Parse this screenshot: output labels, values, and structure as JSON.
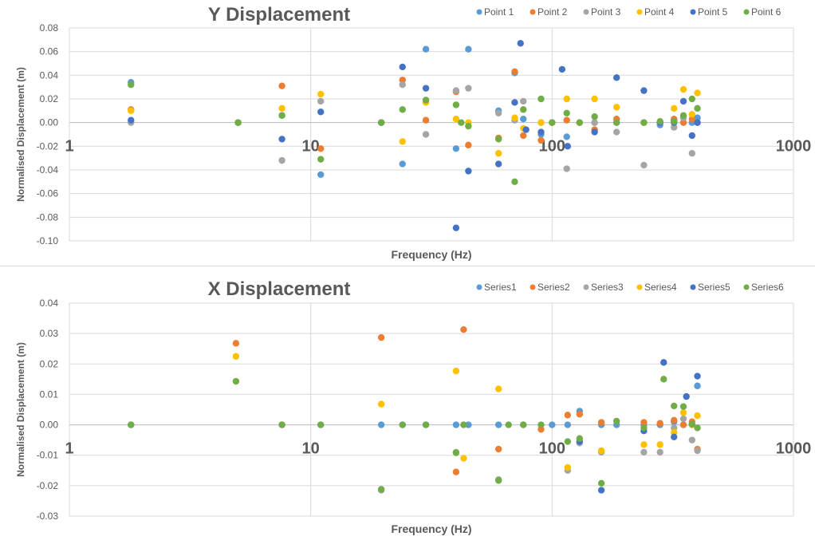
{
  "chart_data": [
    {
      "type": "scatter",
      "title": "Y Displacement",
      "xlabel": "Frequency (Hz)",
      "ylabel": "Normalised Displacement (m)",
      "x_scale": "log",
      "xlim": [
        1,
        1000
      ],
      "ylim": [
        -0.1,
        0.08
      ],
      "x_ticks": [
        1,
        10,
        100,
        1000
      ],
      "x_tick_labels": [
        "1",
        "10",
        "100",
        "1000"
      ],
      "y_ticks": [
        -0.1,
        -0.08,
        -0.06,
        -0.04,
        -0.02,
        0.0,
        0.02,
        0.04,
        0.06,
        0.08
      ],
      "y_tick_labels": [
        "-0.10",
        "-0.08",
        "-0.06",
        "-0.04",
        "-0.02",
        "0.00",
        "0.02",
        "0.04",
        "0.06",
        "0.08"
      ],
      "grid": true,
      "legend_position": "top-right",
      "series": [
        {
          "name": "Point 1",
          "color": "#5b9bd5",
          "points": [
            [
              1.8,
              0.034
            ],
            [
              5,
              0.0
            ],
            [
              7.6,
              0.006
            ],
            [
              11,
              -0.044
            ],
            [
              19.6,
              0.0
            ],
            [
              24,
              -0.035
            ],
            [
              30,
              0.062
            ],
            [
              40,
              -0.022
            ],
            [
              45,
              0.062
            ],
            [
              60,
              0.01
            ],
            [
              70,
              0.042
            ],
            [
              76,
              0.003
            ],
            [
              90,
              -0.01
            ],
            [
              100,
              0.0
            ],
            [
              115,
              -0.012
            ],
            [
              130,
              0.0
            ],
            [
              150,
              0.0
            ],
            [
              185,
              0.0
            ],
            [
              240,
              0.0
            ],
            [
              280,
              -0.002
            ],
            [
              320,
              0.002
            ],
            [
              350,
              0.0
            ],
            [
              380,
              0.0
            ],
            [
              400,
              0.004
            ]
          ]
        },
        {
          "name": "Point 2",
          "color": "#ed7d31",
          "points": [
            [
              1.8,
              0.011
            ],
            [
              5,
              0.0
            ],
            [
              7.6,
              0.031
            ],
            [
              11,
              -0.022
            ],
            [
              19.6,
              0.0
            ],
            [
              24,
              0.036
            ],
            [
              30,
              0.002
            ],
            [
              40,
              0.026
            ],
            [
              45,
              -0.019
            ],
            [
              60,
              -0.013
            ],
            [
              70,
              0.043
            ],
            [
              76,
              -0.011
            ],
            [
              90,
              -0.015
            ],
            [
              100,
              0.0
            ],
            [
              115,
              0.002
            ],
            [
              130,
              0.0
            ],
            [
              150,
              -0.006
            ],
            [
              185,
              0.003
            ],
            [
              240,
              0.0
            ],
            [
              280,
              0.0
            ],
            [
              320,
              0.003
            ],
            [
              350,
              0.0
            ],
            [
              380,
              0.003
            ],
            [
              400,
              0.0
            ]
          ]
        },
        {
          "name": "Point 3",
          "color": "#a5a5a5",
          "points": [
            [
              1.8,
              0.0
            ],
            [
              5,
              0.0
            ],
            [
              7.6,
              -0.032
            ],
            [
              11,
              0.018
            ],
            [
              19.6,
              0.0
            ],
            [
              24,
              0.032
            ],
            [
              30,
              -0.01
            ],
            [
              40,
              0.027
            ],
            [
              45,
              0.029
            ],
            [
              60,
              0.008
            ],
            [
              70,
              0.002
            ],
            [
              76,
              0.018
            ],
            [
              90,
              0.0
            ],
            [
              100,
              0.0
            ],
            [
              115,
              -0.039
            ],
            [
              130,
              0.0
            ],
            [
              150,
              0.0
            ],
            [
              185,
              -0.008
            ],
            [
              240,
              -0.036
            ],
            [
              280,
              0.0
            ],
            [
              320,
              -0.004
            ],
            [
              350,
              0.004
            ],
            [
              380,
              -0.026
            ],
            [
              400,
              0.0
            ]
          ]
        },
        {
          "name": "Point 4",
          "color": "#ffc000",
          "points": [
            [
              1.8,
              0.01
            ],
            [
              5,
              0.0
            ],
            [
              7.6,
              0.012
            ],
            [
              11,
              0.024
            ],
            [
              19.6,
              0.0
            ],
            [
              24,
              -0.016
            ],
            [
              30,
              0.017
            ],
            [
              40,
              0.003
            ],
            [
              45,
              0.0
            ],
            [
              60,
              -0.026
            ],
            [
              70,
              0.004
            ],
            [
              76,
              -0.005
            ],
            [
              90,
              0.0
            ],
            [
              100,
              0.0
            ],
            [
              115,
              0.02
            ],
            [
              130,
              0.0
            ],
            [
              150,
              0.02
            ],
            [
              185,
              0.013
            ],
            [
              240,
              0.0
            ],
            [
              280,
              0.0
            ],
            [
              320,
              0.012
            ],
            [
              350,
              0.028
            ],
            [
              380,
              0.007
            ],
            [
              400,
              0.025
            ]
          ]
        },
        {
          "name": "Point 5",
          "color": "#4472c4",
          "points": [
            [
              1.8,
              0.002
            ],
            [
              5,
              0.0
            ],
            [
              7.6,
              -0.014
            ],
            [
              11,
              0.009
            ],
            [
              19.6,
              0.0
            ],
            [
              24,
              0.047
            ],
            [
              30,
              0.029
            ],
            [
              40,
              -0.089
            ],
            [
              45,
              -0.041
            ],
            [
              60,
              -0.035
            ],
            [
              70,
              0.017
            ],
            [
              74,
              0.067
            ],
            [
              78,
              -0.006
            ],
            [
              90,
              -0.008
            ],
            [
              110,
              0.045
            ],
            [
              116,
              -0.02
            ],
            [
              150,
              -0.008
            ],
            [
              185,
              0.038
            ],
            [
              240,
              0.027
            ],
            [
              280,
              0.0
            ],
            [
              320,
              0.0
            ],
            [
              350,
              0.018
            ],
            [
              380,
              -0.011
            ],
            [
              400,
              0.0
            ]
          ]
        },
        {
          "name": "Point 6",
          "color": "#70ad47",
          "points": [
            [
              1.8,
              0.032
            ],
            [
              5,
              0.0
            ],
            [
              7.6,
              0.006
            ],
            [
              11,
              -0.031
            ],
            [
              19.6,
              0.0
            ],
            [
              24,
              0.011
            ],
            [
              30,
              0.019
            ],
            [
              40,
              0.015
            ],
            [
              42,
              0.0
            ],
            [
              45,
              -0.003
            ],
            [
              60,
              -0.014
            ],
            [
              70,
              -0.05
            ],
            [
              76,
              0.011
            ],
            [
              90,
              0.02
            ],
            [
              100,
              0.0
            ],
            [
              115,
              0.008
            ],
            [
              130,
              0.0
            ],
            [
              150,
              0.005
            ],
            [
              185,
              0.0
            ],
            [
              240,
              0.0
            ],
            [
              280,
              0.001
            ],
            [
              320,
              0.001
            ],
            [
              350,
              0.006
            ],
            [
              380,
              0.02
            ],
            [
              400,
              0.012
            ]
          ]
        }
      ]
    },
    {
      "type": "scatter",
      "title": "X Displacement",
      "xlabel": "Frequency (Hz)",
      "ylabel": "Normalised Displacement (m)",
      "x_scale": "log",
      "xlim": [
        1,
        1000
      ],
      "ylim": [
        -0.03,
        0.04
      ],
      "x_ticks": [
        1,
        10,
        100,
        1000
      ],
      "x_tick_labels": [
        "1",
        "10",
        "100",
        "1000"
      ],
      "y_ticks": [
        -0.03,
        -0.02,
        -0.01,
        0.0,
        0.01,
        0.02,
        0.03,
        0.04
      ],
      "y_tick_labels": [
        "-0.03",
        "-0.02",
        "-0.01",
        "0.00",
        "0.01",
        "0.02",
        "0.03",
        "0.04"
      ],
      "grid": true,
      "legend_position": "top-right",
      "series": [
        {
          "name": "Series1",
          "color": "#5b9bd5",
          "points": [
            [
              1.8,
              0.0
            ],
            [
              7.6,
              0.0
            ],
            [
              11,
              0.0
            ],
            [
              19.6,
              0.0
            ],
            [
              24,
              0.0
            ],
            [
              30,
              0.0
            ],
            [
              40,
              0.0
            ],
            [
              45,
              0.0
            ],
            [
              60,
              0.0
            ],
            [
              76,
              0.0
            ],
            [
              100,
              0.0
            ],
            [
              116,
              0.0
            ],
            [
              130,
              0.0045
            ],
            [
              160,
              0.0
            ],
            [
              185,
              0.0
            ],
            [
              240,
              0.0
            ],
            [
              280,
              0.0
            ],
            [
              320,
              0.001
            ],
            [
              350,
              0.0
            ],
            [
              380,
              0.0
            ],
            [
              400,
              0.0128
            ]
          ]
        },
        {
          "name": "Series2",
          "color": "#ed7d31",
          "points": [
            [
              4.9,
              0.0268
            ],
            [
              7.6,
              0.0
            ],
            [
              19.6,
              0.0287
            ],
            [
              40,
              -0.0155
            ],
            [
              43,
              0.0313
            ],
            [
              60,
              -0.008
            ],
            [
              90,
              -0.0015
            ],
            [
              116,
              0.0032
            ],
            [
              130,
              0.0035
            ],
            [
              160,
              0.0008
            ],
            [
              240,
              0.0008
            ],
            [
              280,
              0.0005
            ],
            [
              320,
              0.0015
            ],
            [
              350,
              0.0
            ],
            [
              380,
              0.001
            ],
            [
              400,
              -0.008
            ]
          ]
        },
        {
          "name": "Series3",
          "color": "#a5a5a5",
          "points": [
            [
              1.8,
              0.0
            ],
            [
              19.6,
              -0.0215
            ],
            [
              40,
              -0.009
            ],
            [
              60,
              -0.018
            ],
            [
              116,
              -0.015
            ],
            [
              130,
              -0.006
            ],
            [
              160,
              -0.009
            ],
            [
              240,
              -0.009
            ],
            [
              280,
              -0.009
            ],
            [
              320,
              -0.001
            ],
            [
              350,
              0.002
            ],
            [
              380,
              -0.005
            ],
            [
              400,
              -0.0085
            ]
          ]
        },
        {
          "name": "Series4",
          "color": "#ffc000",
          "points": [
            [
              4.9,
              0.0225
            ],
            [
              19.6,
              0.0068
            ],
            [
              40,
              0.0177
            ],
            [
              43,
              -0.011
            ],
            [
              60,
              0.0118
            ],
            [
              116,
              -0.014
            ],
            [
              160,
              -0.0085
            ],
            [
              240,
              -0.0065
            ],
            [
              280,
              -0.0065
            ],
            [
              320,
              -0.0025
            ],
            [
              350,
              0.004
            ],
            [
              380,
              0.0
            ],
            [
              400,
              0.003
            ]
          ]
        },
        {
          "name": "Series5",
          "color": "#4472c4",
          "points": [
            [
              130,
              -0.0055
            ],
            [
              160,
              -0.0215
            ],
            [
              240,
              -0.002
            ],
            [
              290,
              0.0205
            ],
            [
              320,
              -0.004
            ],
            [
              360,
              0.0093
            ],
            [
              400,
              0.016
            ]
          ]
        },
        {
          "name": "Series6",
          "color": "#70ad47",
          "points": [
            [
              1.8,
              0.0
            ],
            [
              4.9,
              0.0143
            ],
            [
              7.6,
              0.0
            ],
            [
              11,
              0.0
            ],
            [
              19.6,
              -0.0212
            ],
            [
              24,
              0.0
            ],
            [
              30,
              0.0
            ],
            [
              40,
              -0.0092
            ],
            [
              43,
              0.0
            ],
            [
              60,
              -0.0183
            ],
            [
              66,
              0.0
            ],
            [
              76,
              0.0
            ],
            [
              90,
              0.0
            ],
            [
              116,
              -0.0055
            ],
            [
              130,
              -0.0045
            ],
            [
              160,
              -0.0192
            ],
            [
              185,
              0.0012
            ],
            [
              240,
              -0.001
            ],
            [
              290,
              0.015
            ],
            [
              320,
              0.0062
            ],
            [
              350,
              0.006
            ],
            [
              380,
              0.0002
            ],
            [
              400,
              -0.001
            ]
          ]
        }
      ]
    }
  ]
}
